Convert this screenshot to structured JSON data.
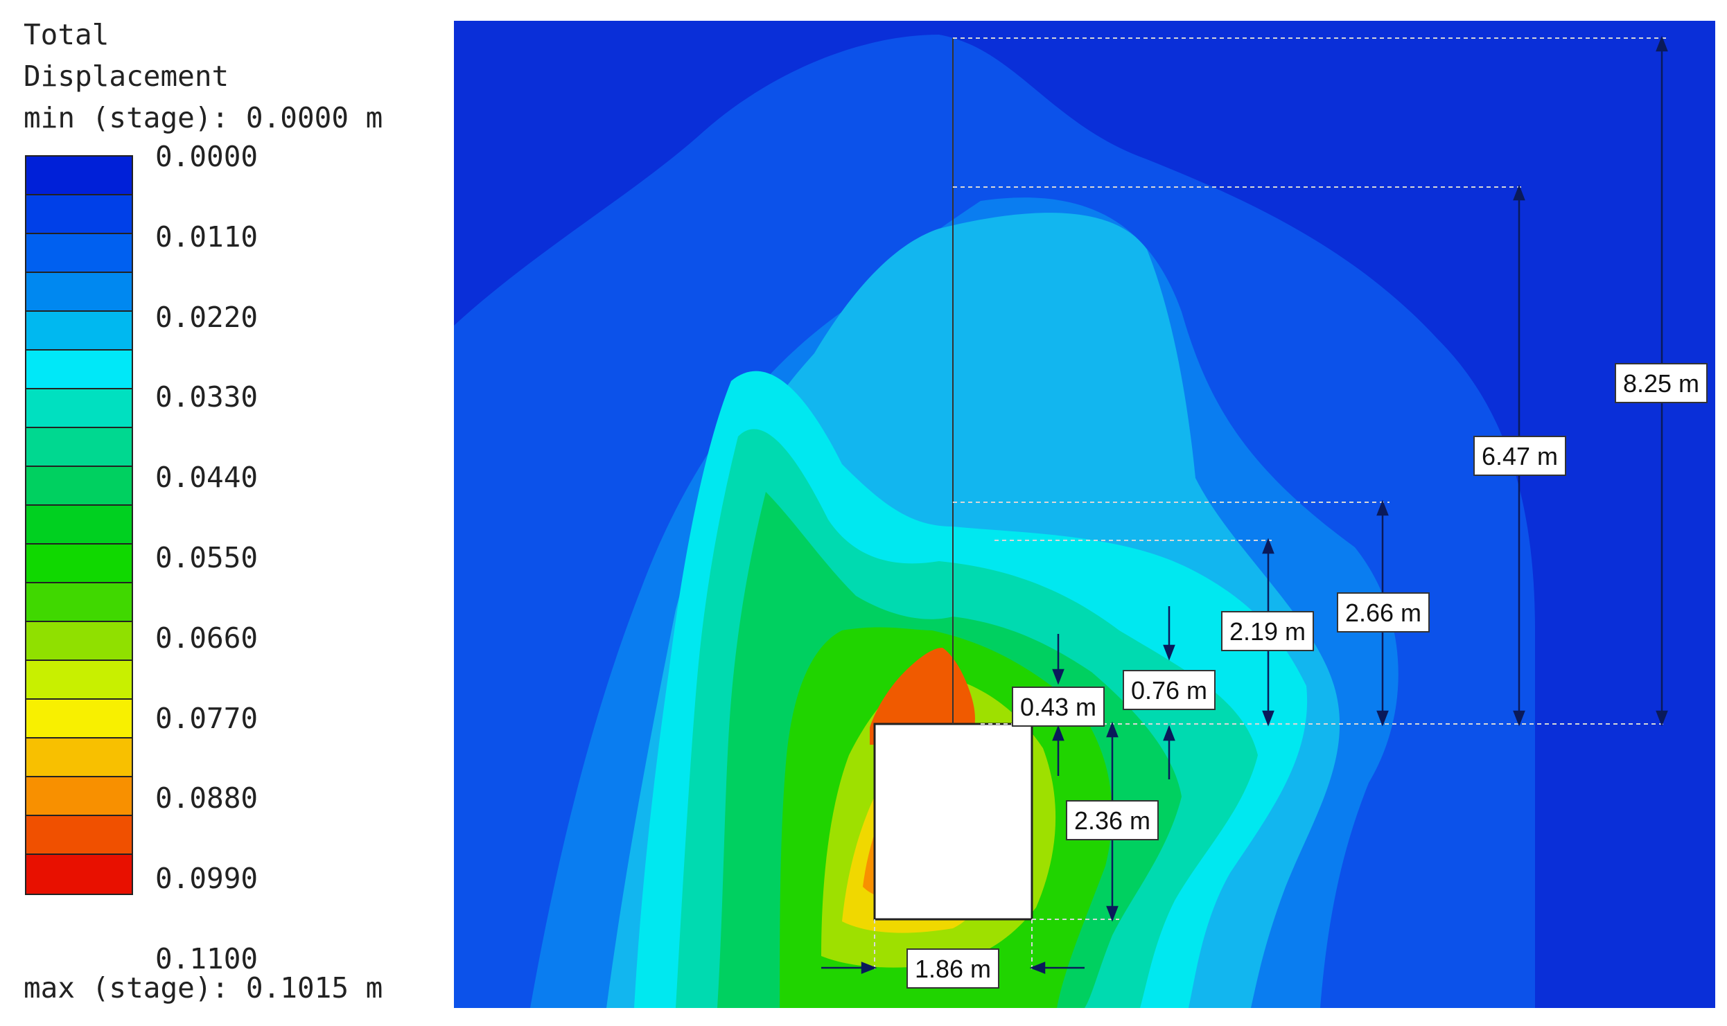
{
  "legend": {
    "title_line1": "Total",
    "title_line2": "Displacement",
    "min_text": "min (stage): 0.0000 m",
    "max_text": "max (stage): 0.1015 m",
    "colors": [
      "#0020d8",
      "#0040e8",
      "#0060f0",
      "#0088f0",
      "#00b8f0",
      "#00e8f8",
      "#00e0c0",
      "#00d890",
      "#00d060",
      "#00d020",
      "#10d800",
      "#40d800",
      "#90e000",
      "#c8f000",
      "#f8f000",
      "#f8c000",
      "#f89000",
      "#f05000",
      "#e81000"
    ],
    "ticks": [
      "0.0000",
      "0.0110",
      "0.0220",
      "0.0330",
      "0.0440",
      "0.0550",
      "0.0660",
      "0.0770",
      "0.0880",
      "0.0990",
      "0.1100"
    ]
  },
  "dimensions": {
    "d_825": "8.25 m",
    "d_647": "6.47 m",
    "d_266": "2.66 m",
    "d_219": "2.19 m",
    "d_076": "0.76 m",
    "d_043": "0.43 m",
    "d_236": "2.36 m",
    "d_186": "1.86 m"
  }
}
